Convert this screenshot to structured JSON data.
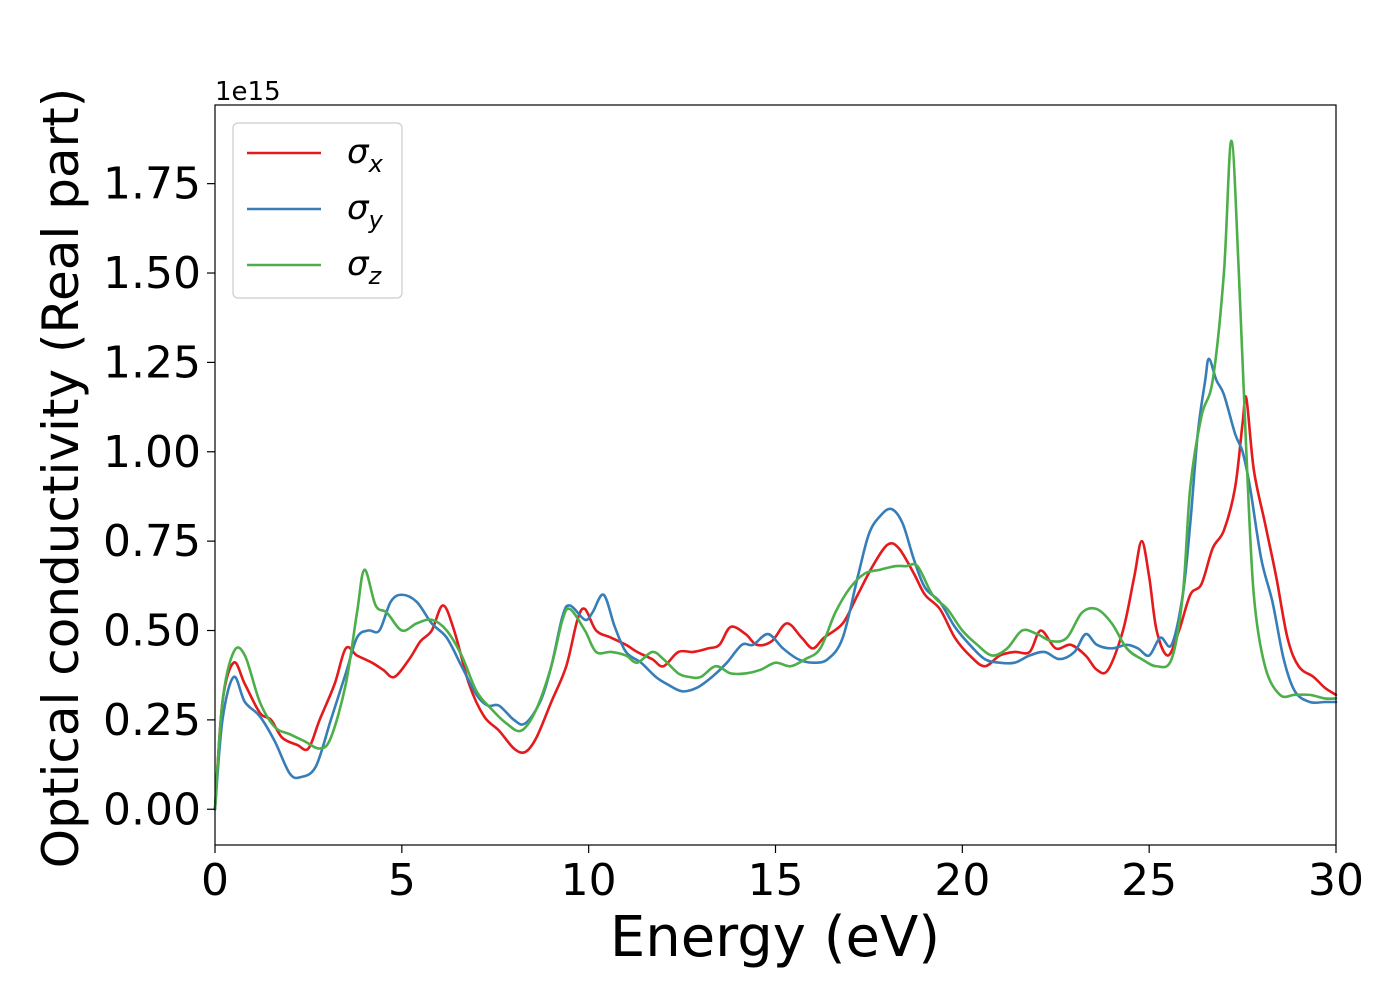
{
  "chart_data": {
    "type": "line",
    "title": "",
    "xlabel": "Energy (eV)",
    "ylabel": "Optical conductivity (Real part)",
    "y_multiplier_label": "1e15",
    "xlim": [
      0,
      30
    ],
    "ylim": [
      -0.1,
      1.97
    ],
    "xticks": [
      0,
      5,
      10,
      15,
      20,
      25,
      30
    ],
    "xtick_labels": [
      "0",
      "5",
      "10",
      "15",
      "20",
      "25",
      "30"
    ],
    "yticks": [
      0.0,
      0.25,
      0.5,
      0.75,
      1.0,
      1.25,
      1.5,
      1.75
    ],
    "ytick_labels": [
      "0.00",
      "0.25",
      "0.50",
      "0.75",
      "1.00",
      "1.25",
      "1.50",
      "1.75"
    ],
    "grid": false,
    "legend_position": "top-left",
    "legend": [
      {
        "base": "σ",
        "sub": "x",
        "color": "#e41a1c"
      },
      {
        "base": "σ",
        "sub": "y",
        "color": "#377eb8"
      },
      {
        "base": "σ",
        "sub": "z",
        "color": "#4daf4a"
      }
    ],
    "series": [
      {
        "name": "σx",
        "color": "#e41a1c",
        "points": [
          [
            0,
            0
          ],
          [
            0.2,
            0.3
          ],
          [
            0.5,
            0.41
          ],
          [
            0.8,
            0.35
          ],
          [
            1.2,
            0.27
          ],
          [
            1.5,
            0.25
          ],
          [
            1.8,
            0.2
          ],
          [
            2.2,
            0.18
          ],
          [
            2.5,
            0.17
          ],
          [
            2.8,
            0.25
          ],
          [
            3.2,
            0.35
          ],
          [
            3.5,
            0.45
          ],
          [
            3.8,
            0.43
          ],
          [
            4.2,
            0.41
          ],
          [
            4.5,
            0.39
          ],
          [
            4.8,
            0.37
          ],
          [
            5.2,
            0.42
          ],
          [
            5.5,
            0.47
          ],
          [
            5.8,
            0.5
          ],
          [
            6.1,
            0.57
          ],
          [
            6.4,
            0.5
          ],
          [
            6.8,
            0.35
          ],
          [
            7.2,
            0.26
          ],
          [
            7.6,
            0.22
          ],
          [
            8.0,
            0.17
          ],
          [
            8.3,
            0.16
          ],
          [
            8.6,
            0.2
          ],
          [
            9.0,
            0.3
          ],
          [
            9.4,
            0.4
          ],
          [
            9.7,
            0.53
          ],
          [
            9.9,
            0.56
          ],
          [
            10.2,
            0.5
          ],
          [
            10.6,
            0.48
          ],
          [
            11.0,
            0.46
          ],
          [
            11.3,
            0.44
          ],
          [
            11.7,
            0.42
          ],
          [
            12.0,
            0.4
          ],
          [
            12.4,
            0.44
          ],
          [
            12.8,
            0.44
          ],
          [
            13.2,
            0.45
          ],
          [
            13.5,
            0.46
          ],
          [
            13.8,
            0.51
          ],
          [
            14.2,
            0.49
          ],
          [
            14.5,
            0.46
          ],
          [
            14.9,
            0.47
          ],
          [
            15.3,
            0.52
          ],
          [
            15.7,
            0.48
          ],
          [
            16.0,
            0.45
          ],
          [
            16.3,
            0.48
          ],
          [
            16.8,
            0.52
          ],
          [
            17.2,
            0.6
          ],
          [
            17.6,
            0.68
          ],
          [
            18.0,
            0.74
          ],
          [
            18.3,
            0.73
          ],
          [
            18.7,
            0.66
          ],
          [
            19.0,
            0.6
          ],
          [
            19.4,
            0.56
          ],
          [
            19.8,
            0.48
          ],
          [
            20.2,
            0.43
          ],
          [
            20.6,
            0.4
          ],
          [
            21.0,
            0.43
          ],
          [
            21.4,
            0.44
          ],
          [
            21.8,
            0.44
          ],
          [
            22.1,
            0.5
          ],
          [
            22.5,
            0.45
          ],
          [
            22.9,
            0.46
          ],
          [
            23.3,
            0.43
          ],
          [
            23.6,
            0.39
          ],
          [
            23.9,
            0.39
          ],
          [
            24.3,
            0.5
          ],
          [
            24.6,
            0.65
          ],
          [
            24.8,
            0.75
          ],
          [
            25.0,
            0.65
          ],
          [
            25.2,
            0.5
          ],
          [
            25.5,
            0.43
          ],
          [
            25.8,
            0.5
          ],
          [
            26.1,
            0.6
          ],
          [
            26.4,
            0.63
          ],
          [
            26.7,
            0.73
          ],
          [
            27.0,
            0.78
          ],
          [
            27.3,
            0.9
          ],
          [
            27.5,
            1.08
          ],
          [
            27.6,
            1.15
          ],
          [
            27.8,
            0.95
          ],
          [
            28.1,
            0.8
          ],
          [
            28.4,
            0.65
          ],
          [
            28.7,
            0.48
          ],
          [
            29.0,
            0.4
          ],
          [
            29.4,
            0.37
          ],
          [
            29.7,
            0.34
          ],
          [
            30.0,
            0.32
          ]
        ]
      },
      {
        "name": "σy",
        "color": "#377eb8",
        "points": [
          [
            0,
            0
          ],
          [
            0.2,
            0.25
          ],
          [
            0.5,
            0.37
          ],
          [
            0.8,
            0.3
          ],
          [
            1.2,
            0.26
          ],
          [
            1.6,
            0.19
          ],
          [
            2.0,
            0.1
          ],
          [
            2.3,
            0.09
          ],
          [
            2.7,
            0.12
          ],
          [
            3.1,
            0.25
          ],
          [
            3.5,
            0.38
          ],
          [
            3.8,
            0.48
          ],
          [
            4.1,
            0.5
          ],
          [
            4.4,
            0.5
          ],
          [
            4.7,
            0.58
          ],
          [
            5.0,
            0.6
          ],
          [
            5.4,
            0.58
          ],
          [
            5.8,
            0.52
          ],
          [
            6.2,
            0.48
          ],
          [
            6.6,
            0.4
          ],
          [
            7.0,
            0.32
          ],
          [
            7.3,
            0.29
          ],
          [
            7.6,
            0.29
          ],
          [
            8.0,
            0.25
          ],
          [
            8.3,
            0.24
          ],
          [
            8.7,
            0.3
          ],
          [
            9.0,
            0.4
          ],
          [
            9.3,
            0.54
          ],
          [
            9.5,
            0.57
          ],
          [
            9.9,
            0.53
          ],
          [
            10.1,
            0.55
          ],
          [
            10.4,
            0.6
          ],
          [
            10.7,
            0.51
          ],
          [
            11.0,
            0.44
          ],
          [
            11.4,
            0.41
          ],
          [
            11.8,
            0.37
          ],
          [
            12.1,
            0.35
          ],
          [
            12.5,
            0.33
          ],
          [
            12.9,
            0.34
          ],
          [
            13.3,
            0.37
          ],
          [
            13.7,
            0.41
          ],
          [
            14.1,
            0.46
          ],
          [
            14.4,
            0.46
          ],
          [
            14.8,
            0.49
          ],
          [
            15.2,
            0.45
          ],
          [
            15.6,
            0.42
          ],
          [
            16.0,
            0.41
          ],
          [
            16.4,
            0.42
          ],
          [
            16.8,
            0.48
          ],
          [
            17.2,
            0.65
          ],
          [
            17.5,
            0.77
          ],
          [
            17.8,
            0.82
          ],
          [
            18.1,
            0.84
          ],
          [
            18.4,
            0.8
          ],
          [
            18.7,
            0.7
          ],
          [
            19.0,
            0.62
          ],
          [
            19.4,
            0.58
          ],
          [
            19.8,
            0.51
          ],
          [
            20.2,
            0.46
          ],
          [
            20.6,
            0.42
          ],
          [
            21.0,
            0.41
          ],
          [
            21.4,
            0.41
          ],
          [
            21.8,
            0.43
          ],
          [
            22.2,
            0.44
          ],
          [
            22.6,
            0.42
          ],
          [
            23.0,
            0.44
          ],
          [
            23.3,
            0.49
          ],
          [
            23.6,
            0.46
          ],
          [
            24.0,
            0.45
          ],
          [
            24.4,
            0.46
          ],
          [
            24.7,
            0.45
          ],
          [
            25.0,
            0.43
          ],
          [
            25.3,
            0.48
          ],
          [
            25.6,
            0.46
          ],
          [
            25.9,
            0.6
          ],
          [
            26.1,
            0.8
          ],
          [
            26.3,
            1.05
          ],
          [
            26.5,
            1.2
          ],
          [
            26.6,
            1.26
          ],
          [
            26.8,
            1.2
          ],
          [
            27.0,
            1.16
          ],
          [
            27.3,
            1.05
          ],
          [
            27.5,
            1.0
          ],
          [
            27.7,
            0.9
          ],
          [
            28.0,
            0.7
          ],
          [
            28.3,
            0.58
          ],
          [
            28.6,
            0.42
          ],
          [
            28.9,
            0.33
          ],
          [
            29.3,
            0.3
          ],
          [
            29.7,
            0.3
          ],
          [
            30.0,
            0.3
          ]
        ]
      },
      {
        "name": "σz",
        "color": "#4daf4a",
        "points": [
          [
            0,
            0
          ],
          [
            0.2,
            0.3
          ],
          [
            0.5,
            0.44
          ],
          [
            0.8,
            0.43
          ],
          [
            1.2,
            0.3
          ],
          [
            1.6,
            0.23
          ],
          [
            2.0,
            0.21
          ],
          [
            2.4,
            0.19
          ],
          [
            2.8,
            0.17
          ],
          [
            3.1,
            0.2
          ],
          [
            3.5,
            0.35
          ],
          [
            3.8,
            0.55
          ],
          [
            4.0,
            0.67
          ],
          [
            4.3,
            0.57
          ],
          [
            4.6,
            0.55
          ],
          [
            5.0,
            0.5
          ],
          [
            5.4,
            0.52
          ],
          [
            5.8,
            0.53
          ],
          [
            6.2,
            0.5
          ],
          [
            6.6,
            0.43
          ],
          [
            7.0,
            0.33
          ],
          [
            7.4,
            0.28
          ],
          [
            7.8,
            0.24
          ],
          [
            8.2,
            0.22
          ],
          [
            8.6,
            0.28
          ],
          [
            9.0,
            0.4
          ],
          [
            9.3,
            0.53
          ],
          [
            9.5,
            0.56
          ],
          [
            9.9,
            0.5
          ],
          [
            10.2,
            0.44
          ],
          [
            10.6,
            0.44
          ],
          [
            11.0,
            0.43
          ],
          [
            11.3,
            0.41
          ],
          [
            11.7,
            0.44
          ],
          [
            12.0,
            0.42
          ],
          [
            12.4,
            0.38
          ],
          [
            12.7,
            0.37
          ],
          [
            13.0,
            0.37
          ],
          [
            13.4,
            0.4
          ],
          [
            13.8,
            0.38
          ],
          [
            14.2,
            0.38
          ],
          [
            14.6,
            0.39
          ],
          [
            15.0,
            0.41
          ],
          [
            15.4,
            0.4
          ],
          [
            15.8,
            0.42
          ],
          [
            16.2,
            0.45
          ],
          [
            16.6,
            0.55
          ],
          [
            17.0,
            0.62
          ],
          [
            17.4,
            0.66
          ],
          [
            17.8,
            0.67
          ],
          [
            18.2,
            0.68
          ],
          [
            18.5,
            0.68
          ],
          [
            18.8,
            0.68
          ],
          [
            19.2,
            0.6
          ],
          [
            19.6,
            0.56
          ],
          [
            20.0,
            0.5
          ],
          [
            20.4,
            0.46
          ],
          [
            20.8,
            0.43
          ],
          [
            21.2,
            0.45
          ],
          [
            21.6,
            0.5
          ],
          [
            22.0,
            0.49
          ],
          [
            22.4,
            0.47
          ],
          [
            22.8,
            0.48
          ],
          [
            23.2,
            0.55
          ],
          [
            23.6,
            0.56
          ],
          [
            24.0,
            0.52
          ],
          [
            24.4,
            0.45
          ],
          [
            24.8,
            0.42
          ],
          [
            25.2,
            0.4
          ],
          [
            25.6,
            0.42
          ],
          [
            25.9,
            0.6
          ],
          [
            26.1,
            0.9
          ],
          [
            26.4,
            1.1
          ],
          [
            26.7,
            1.2
          ],
          [
            27.0,
            1.5
          ],
          [
            27.2,
            1.87
          ],
          [
            27.4,
            1.5
          ],
          [
            27.6,
            1.0
          ],
          [
            27.8,
            0.6
          ],
          [
            28.1,
            0.4
          ],
          [
            28.5,
            0.32
          ],
          [
            28.9,
            0.32
          ],
          [
            29.3,
            0.32
          ],
          [
            29.7,
            0.31
          ],
          [
            30.0,
            0.31
          ]
        ]
      }
    ]
  }
}
